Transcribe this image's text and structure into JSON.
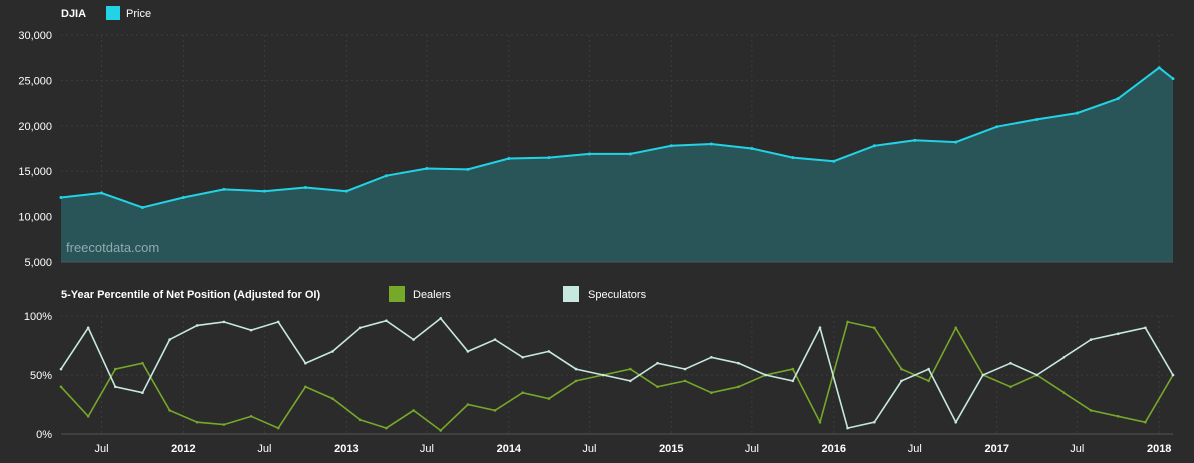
{
  "colors": {
    "background": "#2b2b2b",
    "grid": "#3c3c3c",
    "price_line": "#22d3e6",
    "price_fill": "#2a5558",
    "dealers": "#76a82a",
    "speculators": "#c6e8df",
    "text": "#ffffff"
  },
  "watermark": "freecotdata.com",
  "x_ticks": [
    "Jul",
    "2012",
    "Jul",
    "2013",
    "Jul",
    "2014",
    "Jul",
    "2015",
    "Jul",
    "2016",
    "Jul",
    "2017",
    "Jul",
    "2018"
  ],
  "x_ticks_bold": [
    false,
    true,
    false,
    true,
    false,
    true,
    false,
    true,
    false,
    true,
    false,
    true,
    false,
    true
  ],
  "chart_data": [
    {
      "type": "area",
      "title": "DJIA",
      "legend": [
        {
          "name": "Price",
          "color": "#22d3e6"
        }
      ],
      "ylim": [
        5000,
        30000
      ],
      "y_ticks": [
        "5,000",
        "10,000",
        "15,000",
        "20,000",
        "25,000",
        "30,000"
      ],
      "y_tick_values": [
        5000,
        10000,
        15000,
        20000,
        25000,
        30000
      ],
      "x_dates": [
        "2011-04",
        "2011-07",
        "2011-10",
        "2012-01",
        "2012-04",
        "2012-07",
        "2012-10",
        "2013-01",
        "2013-04",
        "2013-07",
        "2013-10",
        "2014-01",
        "2014-04",
        "2014-07",
        "2014-10",
        "2015-01",
        "2015-04",
        "2015-07",
        "2015-10",
        "2016-01",
        "2016-04",
        "2016-07",
        "2016-10",
        "2017-01",
        "2017-04",
        "2017-07",
        "2017-10",
        "2018-01",
        "2018-02"
      ],
      "series": [
        {
          "name": "Price",
          "values": [
            12100,
            12600,
            11000,
            12100,
            13000,
            12800,
            13200,
            12800,
            14500,
            15300,
            15200,
            16400,
            16500,
            16900,
            16900,
            17800,
            18000,
            17500,
            16500,
            16100,
            17800,
            18400,
            18200,
            19900,
            20700,
            21400,
            23000,
            26400,
            25200
          ]
        }
      ]
    },
    {
      "type": "line",
      "title": "5-Year Percentile of Net Position (Adjusted for OI)",
      "ylim": [
        0,
        100
      ],
      "y_ticks": [
        "0%",
        "50%",
        "100%"
      ],
      "y_tick_values": [
        0,
        50,
        100
      ],
      "x_dates": [
        "2011-04",
        "2011-06",
        "2011-08",
        "2011-10",
        "2011-12",
        "2012-02",
        "2012-04",
        "2012-06",
        "2012-08",
        "2012-10",
        "2012-12",
        "2013-02",
        "2013-04",
        "2013-06",
        "2013-08",
        "2013-10",
        "2013-12",
        "2014-02",
        "2014-04",
        "2014-06",
        "2014-08",
        "2014-10",
        "2014-12",
        "2015-02",
        "2015-04",
        "2015-06",
        "2015-08",
        "2015-10",
        "2015-12",
        "2016-02",
        "2016-04",
        "2016-06",
        "2016-08",
        "2016-10",
        "2016-12",
        "2017-02",
        "2017-04",
        "2017-06",
        "2017-08",
        "2017-10",
        "2017-12",
        "2018-02"
      ],
      "series": [
        {
          "name": "Dealers",
          "color": "#76a82a",
          "values": [
            40,
            15,
            55,
            60,
            20,
            10,
            8,
            15,
            5,
            40,
            30,
            12,
            5,
            20,
            3,
            25,
            20,
            35,
            30,
            45,
            50,
            55,
            40,
            45,
            35,
            40,
            50,
            55,
            10,
            95,
            90,
            55,
            45,
            90,
            50,
            40,
            50,
            35,
            20,
            15,
            10,
            50
          ]
        },
        {
          "name": "Speculators",
          "color": "#c6e8df",
          "values": [
            55,
            90,
            40,
            35,
            80,
            92,
            95,
            88,
            95,
            60,
            70,
            90,
            96,
            80,
            98,
            70,
            80,
            65,
            70,
            55,
            50,
            45,
            60,
            55,
            65,
            60,
            50,
            45,
            90,
            5,
            10,
            45,
            55,
            10,
            50,
            60,
            50,
            65,
            80,
            85,
            90,
            50
          ]
        }
      ]
    }
  ]
}
